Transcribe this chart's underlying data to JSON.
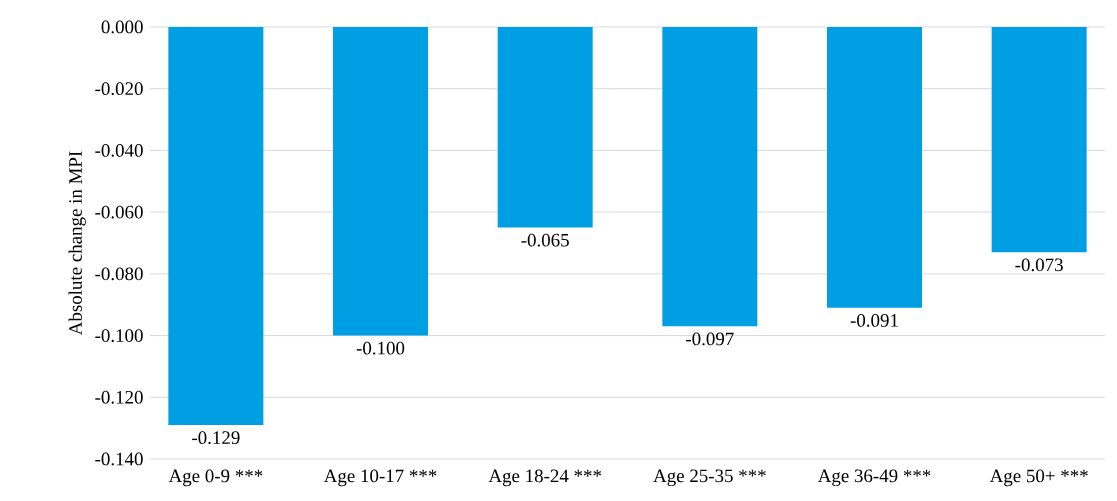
{
  "chart_data": {
    "type": "bar",
    "ylabel": "Absolute change in MPI",
    "categories": [
      "Age 0-9 ***",
      "Age 10-17 ***",
      "Age 18-24 ***",
      "Age 25-35 ***",
      "Age 36-49 ***",
      "Age 50+ ***"
    ],
    "values": [
      -0.129,
      -0.1,
      -0.065,
      -0.097,
      -0.091,
      -0.073
    ],
    "value_labels": [
      "-0.129",
      "-0.100",
      "-0.065",
      "-0.097",
      "-0.091",
      "-0.073"
    ],
    "color": "#009fe3",
    "ylim": [
      -0.14,
      0
    ],
    "yticks": [
      {
        "value": -0.14,
        "label": "-0.140"
      },
      {
        "value": -0.12,
        "label": "-0.120"
      },
      {
        "value": -0.1,
        "label": "-0.100"
      },
      {
        "value": -0.08,
        "label": "-0.080"
      },
      {
        "value": -0.06,
        "label": "-0.060"
      },
      {
        "value": -0.04,
        "label": "-0.040"
      },
      {
        "value": -0.02,
        "label": "-0.020"
      },
      {
        "value": 0,
        "label": "0.000"
      }
    ],
    "grid": "y"
  }
}
